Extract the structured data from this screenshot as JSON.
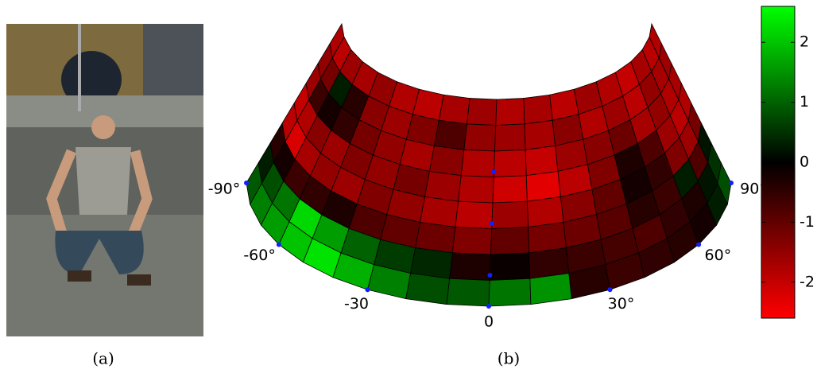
{
  "captions": [
    "(a)",
    "(b)"
  ],
  "heatmap": {
    "clim": [
      -2.6,
      2.6
    ],
    "cticks": [
      2,
      1,
      0,
      -1,
      -2
    ],
    "angles": [
      {
        "value": -90,
        "label": "-90°"
      },
      {
        "value": -60,
        "label": "-60°"
      },
      {
        "value": -30,
        "label": "-30"
      },
      {
        "value": 0,
        "label": "0"
      },
      {
        "value": 30,
        "label": "30°"
      },
      {
        "value": 60,
        "label": "60°"
      },
      {
        "value": 90,
        "label": "90°"
      }
    ],
    "values": [
      [
        -1.8,
        -1.9,
        -1.6,
        -1.7,
        -1.5,
        -1.8,
        -1.9,
        -1.7,
        -1.6,
        -1.8,
        -1.7,
        -1.9,
        -1.6,
        -1.8,
        -2.0,
        -1.7,
        -1.9,
        -1.8
      ],
      [
        -1.5,
        -1.2,
        0.3,
        -0.4,
        -1.4,
        -1.6,
        -1.3,
        -0.8,
        -1.5,
        -1.6,
        -1.7,
        -1.4,
        -1.8,
        -1.6,
        -1.9,
        -1.5,
        -1.7,
        -1.6
      ],
      [
        -1.6,
        -0.6,
        -0.2,
        -0.5,
        -1.2,
        -1.5,
        -1.7,
        -1.4,
        -1.8,
        -1.9,
        -2.0,
        -1.6,
        -1.4,
        -1.1,
        -1.7,
        -1.5,
        -1.8,
        -1.7
      ],
      [
        -2.0,
        -1.8,
        -1.4,
        -1.6,
        -1.3,
        -1.5,
        -1.2,
        -1.6,
        -1.8,
        -2.1,
        -2.3,
        -1.9,
        -1.3,
        -0.3,
        -0.8,
        -1.6,
        -1.9,
        -1.8
      ],
      [
        -1.9,
        -2.2,
        -1.7,
        -1.5,
        -1.6,
        -1.3,
        -1.5,
        -1.7,
        -1.9,
        -1.6,
        -1.8,
        -1.4,
        -1.0,
        -0.2,
        -0.5,
        -1.3,
        -1.6,
        -1.2
      ],
      [
        -0.4,
        -0.2,
        -0.6,
        -0.5,
        -0.3,
        -0.8,
        -1.0,
        -1.1,
        -1.3,
        -1.0,
        -1.2,
        -1.1,
        -0.9,
        -0.4,
        -0.6,
        0.3,
        -0.8,
        0.2
      ],
      [
        0.3,
        0.8,
        1.2,
        2.2,
        1.6,
        1.0,
        0.6,
        0.4,
        -0.3,
        -0.1,
        -0.5,
        -0.6,
        -0.7,
        -0.8,
        -0.5,
        -0.3,
        0.2,
        0.5
      ],
      [
        0.9,
        1.3,
        1.6,
        2.0,
        2.3,
        1.8,
        1.3,
        0.8,
        0.9,
        1.2,
        1.5,
        -0.4,
        -0.6,
        -0.5,
        -0.4,
        -0.2,
        0.3,
        0.8
      ]
    ]
  }
}
